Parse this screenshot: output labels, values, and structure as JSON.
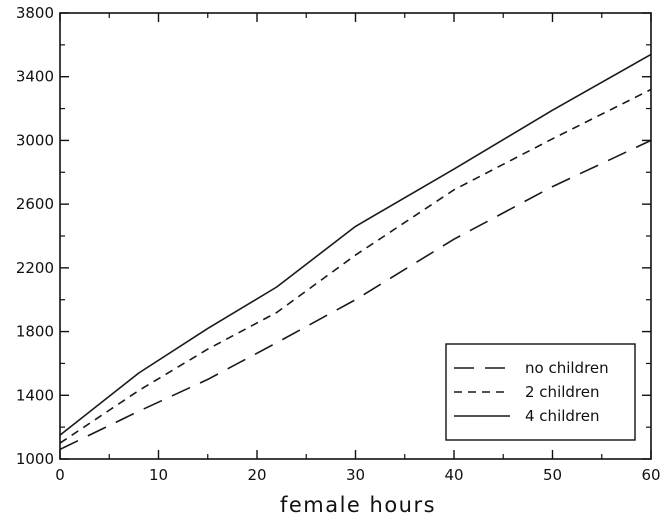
{
  "chart_data": {
    "type": "line",
    "title": "",
    "xlabel": "female hours",
    "ylabel": "",
    "xlim": [
      0,
      60
    ],
    "ylim": [
      1000,
      3800
    ],
    "xticks": [
      "0",
      "10",
      "20",
      "30",
      "40",
      "50",
      "60"
    ],
    "yticks": [
      "1000",
      "1400",
      "1800",
      "2200",
      "2600",
      "3000",
      "3400",
      "3800"
    ],
    "grid": false,
    "legend_position": "bottom-right",
    "x": [
      0,
      8,
      15,
      22,
      30,
      40,
      50,
      60
    ],
    "series": [
      {
        "name": "no children",
        "style": "long-dash",
        "values": [
          1060,
          1300,
          1500,
          1730,
          2000,
          2380,
          2710,
          3000
        ]
      },
      {
        "name": "2 children",
        "style": "short-dash",
        "values": [
          1100,
          1430,
          1690,
          1920,
          2280,
          2690,
          3010,
          3320
        ]
      },
      {
        "name": "4 children",
        "style": "solid",
        "values": [
          1150,
          1540,
          1820,
          2080,
          2460,
          2820,
          3190,
          3540
        ]
      }
    ],
    "colors": {
      "line": "#1a1a1a",
      "axis": "#111111",
      "background": "#ffffff"
    }
  }
}
